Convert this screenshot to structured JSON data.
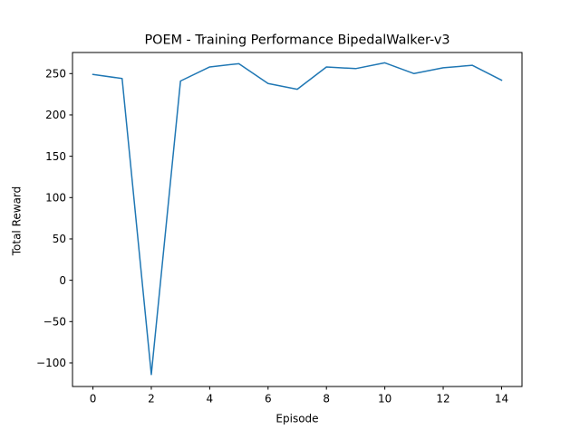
{
  "chart_data": {
    "type": "line",
    "title": "POEM - Training Performance BipedalWalker-v3",
    "xlabel": "Episode",
    "ylabel": "Total Reward",
    "xlim": [
      -0.7,
      14.7
    ],
    "ylim": [
      -128.5,
      275.5
    ],
    "xticks": [
      0,
      2,
      4,
      6,
      8,
      10,
      12,
      14
    ],
    "xtick_labels": [
      "0",
      "2",
      "4",
      "6",
      "8",
      "10",
      "12",
      "14"
    ],
    "yticks": [
      -100,
      -50,
      0,
      50,
      100,
      150,
      200,
      250
    ],
    "ytick_labels": [
      "−100",
      "−50",
      "0",
      "50",
      "100",
      "150",
      "200",
      "250"
    ],
    "grid": false,
    "legend": "none",
    "series": [
      {
        "color": "#1f77b4",
        "x": [
          0,
          1,
          2,
          3,
          4,
          5,
          6,
          7,
          8,
          9,
          10,
          11,
          12,
          13,
          14
        ],
        "y": [
          249,
          244,
          -114,
          241,
          258,
          262,
          238,
          231,
          258,
          256,
          263,
          250,
          257,
          260,
          242
        ]
      }
    ]
  }
}
